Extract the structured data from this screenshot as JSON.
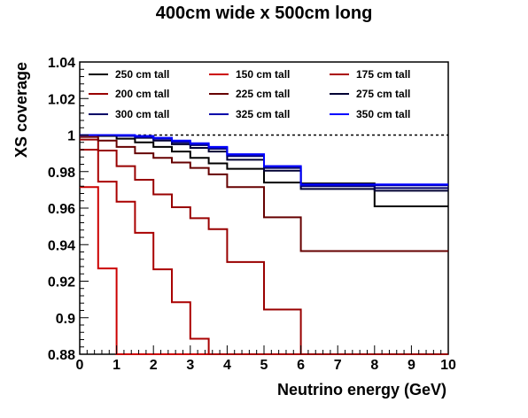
{
  "chart_data": {
    "type": "line",
    "title": "400cm wide x 500cm long",
    "xlabel": "Neutrino energy (GeV)",
    "ylabel": "XS coverage",
    "xlim": [
      0,
      10
    ],
    "ylim": [
      0.88,
      1.04
    ],
    "xticks": [
      "0",
      "1",
      "2",
      "3",
      "4",
      "5",
      "6",
      "7",
      "8",
      "9",
      "10"
    ],
    "yticks": [
      "0.88",
      "0.9",
      "0.92",
      "0.94",
      "0.96",
      "0.98",
      "1",
      "1.02",
      "1.04"
    ],
    "reference_line": 1.0,
    "bin_edges": [
      0,
      0.5,
      1,
      1.5,
      2,
      2.5,
      3,
      3.5,
      4,
      5,
      6,
      8,
      10
    ],
    "legend_position": "top",
    "series": [
      {
        "name": "250 cm tall",
        "color": "#000000",
        "values": [
          1.0,
          0.9995,
          0.998,
          0.996,
          0.9935,
          0.991,
          0.9875,
          0.9845,
          0.9815,
          0.974,
          0.9735,
          0.961
        ]
      },
      {
        "name": "150 cm tall",
        "color": "#cc0000",
        "values": [
          0.9715,
          0.927,
          0.8795,
          0.8795,
          0.8795,
          0.8795,
          0.8795,
          0.8795,
          0.8795,
          0.8795,
          0.8795,
          0.8795
        ]
      },
      {
        "name": "175 cm tall",
        "color": "#aa0000",
        "values": [
          0.992,
          0.9745,
          0.9635,
          0.9465,
          0.9265,
          0.9085,
          0.8885,
          0.8795,
          0.8795,
          0.8795,
          0.8795,
          0.8795
        ]
      },
      {
        "name": "200 cm tall",
        "color": "#990000",
        "values": [
          0.9975,
          0.9915,
          0.983,
          0.9755,
          0.9675,
          0.9605,
          0.9545,
          0.9485,
          0.9305,
          0.9045,
          0.8795,
          0.8795
        ]
      },
      {
        "name": "225 cm tall",
        "color": "#660000",
        "values": [
          0.999,
          0.997,
          0.9935,
          0.99,
          0.9875,
          0.985,
          0.982,
          0.9785,
          0.9715,
          0.955,
          0.9365,
          0.9365
        ]
      },
      {
        "name": "275 cm tall",
        "color": "#000033",
        "values": [
          1.0,
          1.0,
          0.9995,
          0.9985,
          0.997,
          0.995,
          0.993,
          0.991,
          0.9865,
          0.9805,
          0.9705,
          0.9695
        ]
      },
      {
        "name": "300 cm tall",
        "color": "#000066",
        "values": [
          1.0,
          1.0,
          0.9995,
          0.999,
          0.998,
          0.996,
          0.9945,
          0.9925,
          0.9885,
          0.982,
          0.972,
          0.971
        ]
      },
      {
        "name": "325 cm tall",
        "color": "#0000aa",
        "values": [
          1.0,
          1.0,
          0.9995,
          0.999,
          0.998,
          0.9965,
          0.995,
          0.993,
          0.989,
          0.983,
          0.9725,
          0.9725
        ]
      },
      {
        "name": "350 cm tall",
        "color": "#0000ff",
        "values": [
          1.0,
          1.0,
          1.0,
          0.9995,
          0.9985,
          0.997,
          0.9955,
          0.9935,
          0.9895,
          0.983,
          0.973,
          0.973
        ]
      }
    ]
  }
}
